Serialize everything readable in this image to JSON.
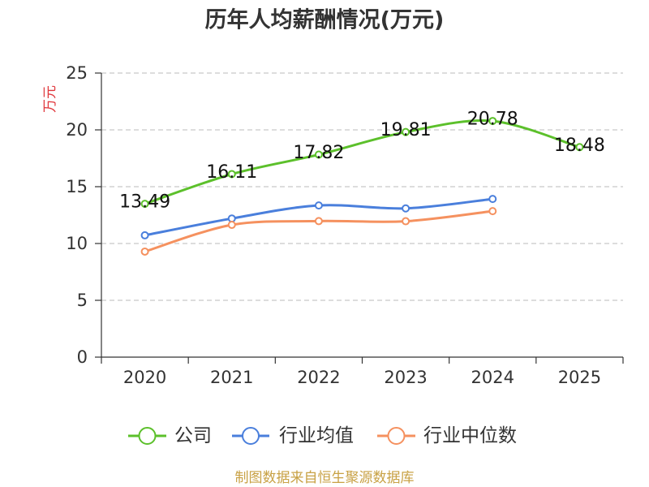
{
  "chart_data": {
    "type": "line",
    "title": "历年人均薪酬情况(万元)",
    "xlabel": "",
    "ylabel": "万元",
    "categories": [
      "2020",
      "2021",
      "2022",
      "2023",
      "2024",
      "2025"
    ],
    "ylim": [
      0,
      25
    ],
    "yticks": [
      0,
      5,
      10,
      15,
      20,
      25
    ],
    "grid": true,
    "legend_position": "bottom",
    "series": [
      {
        "name": "公司",
        "color": "#5cc02b",
        "show_labels": true,
        "values": [
          13.49,
          16.11,
          17.82,
          19.81,
          20.78,
          18.48
        ]
      },
      {
        "name": "行业均值",
        "color": "#4a7fdc",
        "show_labels": false,
        "values": [
          10.72,
          12.2,
          13.35,
          13.09,
          13.92,
          null
        ]
      },
      {
        "name": "行业中位数",
        "color": "#f5915f",
        "show_labels": false,
        "values": [
          9.29,
          11.64,
          11.97,
          11.96,
          12.85,
          null
        ]
      }
    ]
  },
  "footer": {
    "source": "制图数据来自恒生聚源数据库"
  },
  "colors": {
    "axis": "#333333",
    "grid": "#bbbbbb",
    "ylabel": "#e0373c",
    "footer": "#c8a144"
  }
}
